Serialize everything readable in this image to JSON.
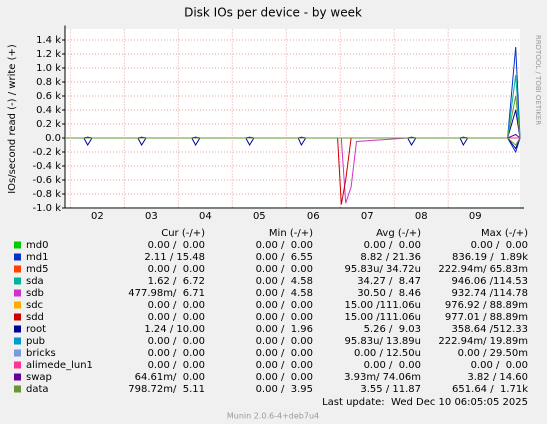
{
  "chart_data": {
    "type": "line",
    "title": "Disk IOs per device - by week",
    "y_label": "IOs/second read (-) / write (+)",
    "side_text": "RRDTOOL / TOBI OETIKER",
    "last_update": "Last update:  Wed Dec 10 06:05:05 2025",
    "version": "Munin 2.0.6-4+deb7u4",
    "xlim": [
      1.4,
      9.83
    ],
    "xticks": [
      {
        "value": 2,
        "label": "02"
      },
      {
        "value": 3,
        "label": "03"
      },
      {
        "value": 4,
        "label": "04"
      },
      {
        "value": 5,
        "label": "05"
      },
      {
        "value": 6,
        "label": "06"
      },
      {
        "value": 7,
        "label": "07"
      },
      {
        "value": 8,
        "label": "08"
      },
      {
        "value": 9,
        "label": "09"
      }
    ],
    "ylim": [
      -1000,
      1550
    ],
    "yticks": [
      {
        "value": -1000,
        "label": "-1.0 k"
      },
      {
        "value": -800,
        "label": "-0.8 k"
      },
      {
        "value": -600,
        "label": "-0.6 k"
      },
      {
        "value": -400,
        "label": "-0.4 k"
      },
      {
        "value": -200,
        "label": "-0.2 k"
      },
      {
        "value": 0,
        "label": "0.0"
      },
      {
        "value": 200,
        "label": "0.2 k"
      },
      {
        "value": 400,
        "label": "0.4 k"
      },
      {
        "value": 600,
        "label": "0.6 k"
      },
      {
        "value": 800,
        "label": "0.8 k"
      },
      {
        "value": 1000,
        "label": "1.0 k"
      },
      {
        "value": 1200,
        "label": "1.2 k"
      },
      {
        "value": 1400,
        "label": "1.4 k"
      }
    ],
    "grid": true,
    "x": [
      1.4,
      1.75,
      1.82,
      1.9,
      2.75,
      2.82,
      2.9,
      3.75,
      3.82,
      3.9,
      4.75,
      4.82,
      4.9,
      5.72,
      5.78,
      5.86,
      6.45,
      6.52,
      6.6,
      6.7,
      6.8,
      7.75,
      7.82,
      7.9,
      8.72,
      8.78,
      8.86,
      9.6,
      9.75,
      9.83
    ],
    "series": [
      {
        "name": "md0",
        "color": "#00cc00",
        "values": [
          0,
          0,
          0,
          0,
          0,
          0,
          0,
          0,
          0,
          0,
          0,
          0,
          0,
          0,
          0,
          0,
          0,
          0,
          0,
          0,
          0,
          0,
          0,
          0,
          0,
          0,
          0,
          0,
          0,
          0
        ]
      },
      {
        "name": "md1",
        "color": "#0033cc",
        "values": [
          0,
          0,
          10,
          0,
          0,
          10,
          0,
          0,
          10,
          0,
          0,
          10,
          0,
          0,
          10,
          0,
          0,
          0,
          0,
          0,
          0,
          0,
          10,
          0,
          0,
          10,
          0,
          0,
          1300,
          0
        ],
        "read": [
          0,
          0,
          0,
          0,
          0,
          0,
          0,
          0,
          0,
          0,
          0,
          0,
          0,
          0,
          0,
          0,
          0,
          0,
          0,
          0,
          0,
          0,
          0,
          0,
          0,
          0,
          0,
          0,
          -200,
          0
        ]
      },
      {
        "name": "md5",
        "color": "#ff4000",
        "values": [
          0,
          0,
          0,
          0,
          0,
          0,
          0,
          0,
          0,
          0,
          0,
          0,
          0,
          0,
          0,
          0,
          0,
          0,
          0,
          0,
          0,
          0,
          0,
          0,
          0,
          0,
          0,
          0,
          0,
          0
        ]
      },
      {
        "name": "sda",
        "color": "#00b39a",
        "values": [
          0,
          0,
          0,
          0,
          0,
          0,
          0,
          0,
          0,
          0,
          0,
          0,
          0,
          0,
          0,
          0,
          0,
          0,
          0,
          0,
          0,
          0,
          0,
          0,
          0,
          0,
          0,
          0,
          900,
          0
        ]
      },
      {
        "name": "sdb",
        "color": "#cc33cc",
        "values": [
          0,
          0,
          0,
          0,
          0,
          0,
          0,
          0,
          0,
          0,
          0,
          0,
          0,
          0,
          0,
          0,
          0,
          0,
          0,
          0,
          0,
          0,
          0,
          0,
          0,
          0,
          0,
          0,
          0,
          0
        ],
        "read": [
          0,
          0,
          0,
          0,
          0,
          0,
          0,
          0,
          0,
          0,
          0,
          0,
          0,
          0,
          0,
          0,
          0,
          0,
          -930,
          -700,
          -50,
          0,
          0,
          0,
          0,
          0,
          0,
          0,
          0,
          0
        ]
      },
      {
        "name": "sdc",
        "color": "#ffaa00",
        "values": [
          0,
          0,
          0,
          0,
          0,
          0,
          0,
          0,
          0,
          0,
          0,
          0,
          0,
          0,
          0,
          0,
          0,
          0,
          0,
          0,
          0,
          0,
          0,
          0,
          0,
          0,
          0,
          0,
          0,
          0
        ]
      },
      {
        "name": "sdd",
        "color": "#cc0000",
        "values": [
          0,
          0,
          0,
          0,
          0,
          0,
          0,
          0,
          0,
          0,
          0,
          0,
          0,
          0,
          0,
          0,
          0,
          0,
          0,
          0,
          0,
          0,
          0,
          0,
          0,
          0,
          0,
          0,
          0,
          0
        ],
        "read": [
          0,
          0,
          0,
          0,
          0,
          0,
          0,
          0,
          0,
          0,
          0,
          0,
          0,
          0,
          0,
          0,
          0,
          -950,
          -600,
          0,
          0,
          0,
          0,
          0,
          0,
          0,
          0,
          0,
          0,
          0
        ]
      },
      {
        "name": "root",
        "color": "#000099",
        "values": [
          0,
          0,
          10,
          0,
          0,
          10,
          0,
          0,
          10,
          0,
          0,
          10,
          0,
          0,
          10,
          0,
          0,
          0,
          0,
          0,
          0,
          0,
          10,
          0,
          0,
          10,
          0,
          0,
          400,
          0
        ],
        "read": [
          0,
          0,
          -100,
          0,
          0,
          -100,
          0,
          0,
          -100,
          0,
          0,
          -100,
          0,
          0,
          -100,
          0,
          0,
          0,
          0,
          0,
          0,
          0,
          -100,
          0,
          0,
          -100,
          0,
          0,
          -150,
          0
        ]
      },
      {
        "name": "pub",
        "color": "#0099cc",
        "values": [
          0,
          0,
          0,
          0,
          0,
          0,
          0,
          0,
          0,
          0,
          0,
          0,
          0,
          0,
          0,
          0,
          0,
          0,
          0,
          0,
          0,
          0,
          0,
          0,
          0,
          0,
          0,
          0,
          0,
          0
        ]
      },
      {
        "name": "bricks",
        "color": "#7799dd",
        "values": [
          0,
          0,
          0,
          0,
          0,
          0,
          0,
          0,
          0,
          0,
          0,
          0,
          0,
          0,
          0,
          0,
          0,
          0,
          0,
          0,
          0,
          0,
          0,
          0,
          0,
          0,
          0,
          0,
          0,
          0
        ]
      },
      {
        "name": "alimede_lun1",
        "color": "#ff3399",
        "values": [
          0,
          0,
          0,
          0,
          0,
          0,
          0,
          0,
          0,
          0,
          0,
          0,
          0,
          0,
          0,
          0,
          0,
          0,
          0,
          0,
          0,
          0,
          0,
          0,
          0,
          0,
          0,
          0,
          0,
          0
        ]
      },
      {
        "name": "swap",
        "color": "#660099",
        "values": [
          0,
          0,
          0,
          0,
          0,
          0,
          0,
          0,
          0,
          0,
          0,
          0,
          0,
          0,
          0,
          0,
          0,
          0,
          0,
          0,
          0,
          0,
          0,
          0,
          0,
          0,
          0,
          0,
          50,
          0
        ]
      },
      {
        "name": "data",
        "color": "#669933",
        "values": [
          0,
          0,
          0,
          0,
          0,
          0,
          0,
          0,
          0,
          0,
          0,
          0,
          0,
          0,
          0,
          0,
          0,
          0,
          0,
          0,
          0,
          0,
          0,
          0,
          0,
          0,
          0,
          0,
          600,
          0
        ],
        "read": [
          0,
          0,
          0,
          0,
          0,
          0,
          0,
          0,
          0,
          0,
          0,
          0,
          0,
          0,
          0,
          0,
          0,
          0,
          0,
          0,
          0,
          0,
          0,
          0,
          0,
          0,
          0,
          0,
          -100,
          0
        ]
      }
    ],
    "legend_table": {
      "headers": [
        "Cur (-/+)",
        "Min (-/+)",
        "Avg (-/+)",
        "Max (-/+)"
      ],
      "rows": [
        [
          "0.00 /  0.00",
          "0.00 /  0.00",
          "0.00 /  0.00",
          "0.00 /  0.00"
        ],
        [
          "2.11 / 15.48",
          "0.00 /  6.55",
          "8.82 / 21.36",
          "836.19 /  1.89k"
        ],
        [
          "0.00 /  0.00",
          "0.00 /  0.00",
          "95.83u/ 34.72u",
          "222.94m/ 65.83m"
        ],
        [
          "1.62 /  6.72",
          "0.00 /  4.58",
          "34.27 /  8.47",
          "946.06 /114.53"
        ],
        [
          "477.98m/  6.71",
          "0.00 /  4.58",
          "30.50 /  8.46",
          "932.74 /114.78"
        ],
        [
          "0.00 /  0.00",
          "0.00 /  0.00",
          "15.00 /111.06u",
          "976.92 / 88.89m"
        ],
        [
          "0.00 /  0.00",
          "0.00 /  0.00",
          "15.00 /111.06u",
          "977.01 / 88.89m"
        ],
        [
          "1.24 / 10.00",
          "0.00 /  1.96",
          "5.26 /  9.03",
          "358.64 /512.33"
        ],
        [
          "0.00 /  0.00",
          "0.00 /  0.00",
          "95.83u/ 13.89u",
          "222.94m/ 19.89m"
        ],
        [
          "0.00 /  0.00",
          "0.00 /  0.00",
          "0.00 / 12.50u",
          "0.00 / 29.50m"
        ],
        [
          "0.00 /  0.00",
          "0.00 /  0.00",
          "0.00 /  0.00",
          "0.00 /  0.00"
        ],
        [
          "64.61m/  0.00",
          "0.00 /  0.00",
          "3.93m/ 74.06m",
          "3.82 / 14.60"
        ],
        [
          "798.72m/  5.11",
          "0.00 /  3.95",
          "3.55 / 11.87",
          "651.64 /  1.71k"
        ]
      ]
    }
  }
}
